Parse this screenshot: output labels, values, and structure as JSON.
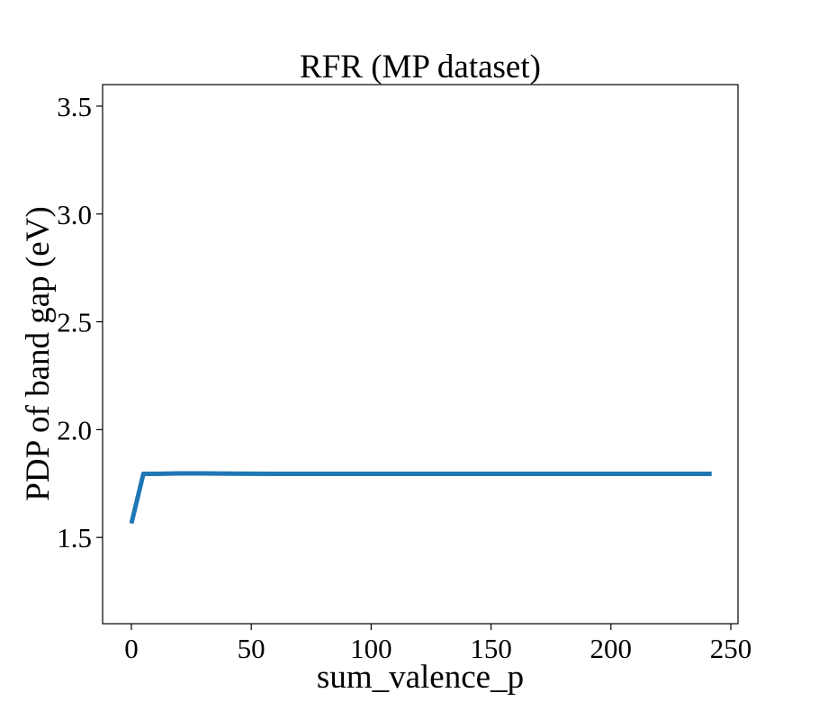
{
  "chart_data": {
    "type": "line",
    "title": "RFR (MP dataset)",
    "xlabel": "sum_valence_p",
    "ylabel": "PDP of band gap (eV)",
    "xlim": [
      -12,
      253
    ],
    "ylim": [
      1.1,
      3.6
    ],
    "xticks": [
      {
        "value": 0,
        "label": "0"
      },
      {
        "value": 50,
        "label": "50"
      },
      {
        "value": 100,
        "label": "100"
      },
      {
        "value": 150,
        "label": "150"
      },
      {
        "value": 200,
        "label": "200"
      },
      {
        "value": 250,
        "label": "250"
      }
    ],
    "yticks": [
      {
        "value": 1.5,
        "label": "1.5"
      },
      {
        "value": 2.0,
        "label": "2.0"
      },
      {
        "value": 2.5,
        "label": "2.5"
      },
      {
        "value": 3.0,
        "label": "3.0"
      },
      {
        "value": 3.5,
        "label": "3.5"
      }
    ],
    "grid": false,
    "series": [
      {
        "color": "#1f77b4",
        "x": [
          0,
          5,
          10,
          20,
          30,
          40,
          60,
          100,
          150,
          200,
          242
        ],
        "y": [
          1.565,
          1.795,
          1.795,
          1.797,
          1.797,
          1.796,
          1.795,
          1.795,
          1.795,
          1.795,
          1.795
        ]
      }
    ]
  }
}
